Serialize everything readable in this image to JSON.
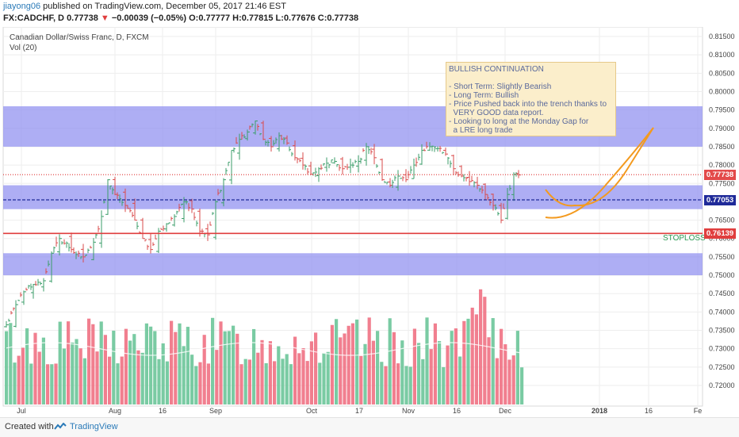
{
  "header": {
    "author": "jiayong06",
    "published": "published on TradingView.com, December 05, 2017 21:46 EST",
    "symbol": "FX:CADCHF, D",
    "last": "0.77738",
    "change": "−0.00039 (−0.05%)",
    "ohlc": "O:0.77777 H:0.77815 L:0.77676 C:0.77738"
  },
  "chart_data": {
    "type": "candlestick",
    "title": "Canadian Dollar/Swiss Franc, D, FXCM",
    "volume_label": "Vol (20)",
    "y_ticks": [
      "0.81500",
      "0.81000",
      "0.80500",
      "0.80000",
      "0.79500",
      "0.79000",
      "0.78500",
      "0.78000",
      "0.77500",
      "0.77000",
      "0.76500",
      "0.76000",
      "0.75500",
      "0.75000",
      "0.74500",
      "0.74000",
      "0.73500",
      "0.73000",
      "0.72500",
      "0.72000"
    ],
    "x_ticks": [
      "Jul",
      "Aug",
      "16",
      "Sep",
      "Oct",
      "17",
      "Nov",
      "16",
      "Dec",
      "2018",
      "16",
      "Fe"
    ],
    "ylim": [
      0.716,
      0.818
    ],
    "zones": [
      [
        0.785,
        0.796
      ],
      [
        0.768,
        0.7745
      ],
      [
        0.75,
        0.756
      ]
    ],
    "price_lines": [
      {
        "value": 0.77738,
        "label": "0.77738",
        "color": "#e34a4a",
        "style": "dotted"
      },
      {
        "value": 0.77053,
        "label": "0.77053",
        "color": "#1f2a99",
        "style": "dashed"
      },
      {
        "value": 0.76139,
        "label": "0.76139",
        "color": "#e03e3e",
        "style": "solid"
      }
    ],
    "annotation": {
      "title": "BULLISH CONTINUATION",
      "lines": [
        "- Short Term: Slightly Bearish",
        "- Long Term: Bullish",
        "- Price Pushed back into the trench thanks to",
        "  VERY GOOD data report.",
        "- Looking to long at the Monday Gap for",
        "  a LRE long trade"
      ]
    },
    "stoploss_label": "STOPLOSS",
    "projection": "curve down then up (orange)"
  },
  "footer": {
    "created": "Created with",
    "brand": "TradingView"
  },
  "colors": {
    "up": "#3b9e6a",
    "down": "#d94b4b",
    "vol_up": "#6cc599",
    "vol_down": "#ef7183",
    "zone": "#8f8ff0",
    "projection": "#f39a1f"
  }
}
